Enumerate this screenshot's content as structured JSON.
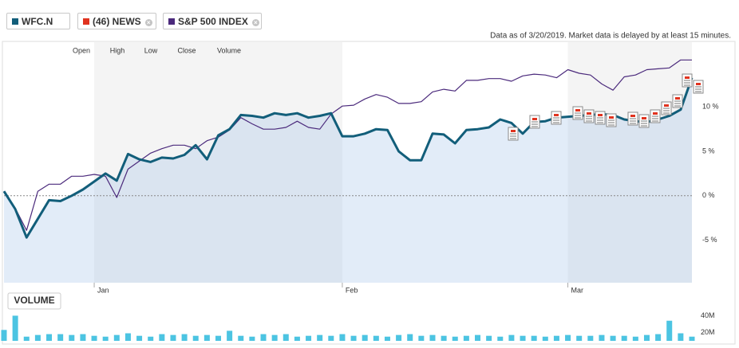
{
  "legend": {
    "series_color_0": "#125e7a",
    "news_label": "(46) NEWS",
    "news_color": "#e0331f",
    "series_color_1": "#4b2a7c"
  },
  "chart_data": [
    {
      "type": "line",
      "subtitle": "Data as of 3/20/2019. Market data is delayed by at least 15 minutes.",
      "hover_labels": [
        "Open",
        "High",
        "Low",
        "Close",
        "Volume"
      ],
      "categories": [
        null,
        null,
        null,
        null,
        null,
        null,
        null,
        null,
        "Jan",
        null,
        null,
        null,
        null,
        null,
        null,
        null,
        null,
        null,
        null,
        null,
        null,
        null,
        null,
        null,
        null,
        null,
        null,
        null,
        null,
        null,
        "Feb",
        null,
        null,
        null,
        null,
        null,
        null,
        null,
        null,
        null,
        null,
        null,
        null,
        null,
        null,
        null,
        null,
        null,
        null,
        null,
        "Mar",
        null,
        null,
        null,
        null,
        null,
        null,
        null,
        null,
        null,
        null,
        null
      ],
      "series": [
        {
          "name": "WFC.N",
          "color": "#125e7a",
          "values": [
            0.5,
            -1.5,
            -4.7,
            -2.6,
            -0.5,
            -0.6,
            0.0,
            0.7,
            1.6,
            2.5,
            1.7,
            4.7,
            4.1,
            3.8,
            4.3,
            4.2,
            4.6,
            5.7,
            4.1,
            6.8,
            7.5,
            9.1,
            9.0,
            8.8,
            9.3,
            9.1,
            9.3,
            8.8,
            9.0,
            9.3,
            6.7,
            6.7,
            7.0,
            7.5,
            7.4,
            5.0,
            4.0,
            4.0,
            7.0,
            6.9,
            5.9,
            7.4,
            7.5,
            7.7,
            8.6,
            8.2,
            7.0,
            8.3,
            8.4,
            8.8,
            8.9,
            9.0,
            9.1,
            9.2,
            9.1,
            8.6,
            8.4,
            8.3,
            8.6,
            9.0,
            9.7,
            13.3
          ]
        },
        {
          "name": "S&P 500 INDEX",
          "color": "#4b2a7c",
          "values": [
            0.5,
            -1.4,
            -3.9,
            0.5,
            1.3,
            1.3,
            2.2,
            2.2,
            2.4,
            2.2,
            -0.2,
            3.0,
            3.9,
            4.8,
            5.3,
            5.7,
            5.7,
            5.3,
            6.2,
            6.6,
            7.4,
            8.8,
            8.1,
            7.5,
            7.5,
            7.7,
            8.4,
            7.7,
            7.5,
            9.2,
            10.1,
            10.2,
            10.9,
            11.4,
            11.1,
            10.4,
            10.4,
            10.6,
            11.7,
            12.0,
            11.8,
            13.0,
            13.0,
            13.2,
            13.2,
            12.9,
            13.5,
            13.7,
            13.6,
            13.3,
            14.2,
            13.8,
            13.6,
            12.6,
            11.9,
            13.4,
            13.6,
            14.2,
            14.3,
            14.4,
            15.3,
            15.3
          ]
        }
      ],
      "ylim": [
        -9.8,
        17.3
      ],
      "yticks": [
        {
          "value": -5,
          "label": "-5 %"
        },
        {
          "value": 0,
          "label": "0 %"
        },
        {
          "value": 5,
          "label": "5 %"
        },
        {
          "value": 10,
          "label": "10 %"
        }
      ],
      "zero_line": true
    },
    {
      "type": "bar",
      "title": "VOLUME",
      "color": "#4cc4e2",
      "values": [
        23,
        40,
        15,
        17,
        18,
        18,
        17,
        18,
        16,
        15,
        17,
        19,
        16,
        15,
        18,
        17,
        18,
        16,
        17,
        16,
        22,
        16,
        15,
        18,
        17,
        18,
        15,
        16,
        17,
        16,
        18,
        16,
        17,
        16,
        15,
        17,
        18,
        16,
        17,
        16,
        15,
        16,
        17,
        16,
        15,
        17,
        16,
        16,
        15,
        16,
        17,
        16,
        16,
        17,
        16,
        16,
        15,
        17,
        18,
        34,
        19,
        15
      ],
      "ylim": [
        10,
        48
      ],
      "yticks": [
        {
          "value": 20,
          "label": "20M"
        },
        {
          "value": 40,
          "label": "40M"
        }
      ]
    }
  ]
}
